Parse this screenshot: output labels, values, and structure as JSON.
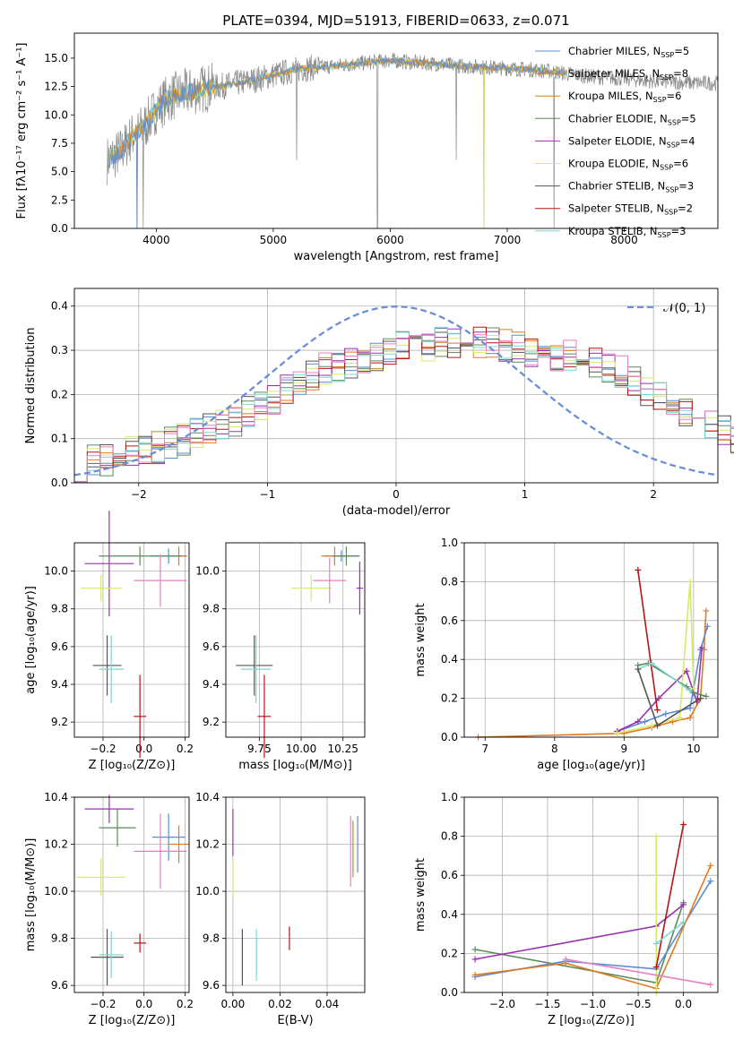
{
  "colors": {
    "c0": "#5b8bd6",
    "c1": "#e07b1f",
    "c2": "#5b8a5b",
    "c3": "#9b30b0",
    "c4": "#d8e86a",
    "c5": "#555555",
    "c6": "#b81414",
    "c7": "#7fd6d0",
    "c8": "#e87fc0",
    "grey": "#888888",
    "normal": "#6a8fd8"
  },
  "chart_data": [
    {
      "type": "line",
      "title": "PLATE=0394, MJD=51913, FIBERID=0633, z=0.071",
      "xlabel": "wavelength [Angstrom, rest frame]",
      "ylabel": "Flux [fλ10⁻¹⁷ erg cm⁻² s⁻¹ A⁻¹]",
      "xlim": [
        3300,
        8800
      ],
      "ylim": [
        0,
        17.2
      ],
      "xticks": [
        4000,
        5000,
        6000,
        7000,
        8000
      ],
      "yticks": [
        0.0,
        2.5,
        5.0,
        7.5,
        10.0,
        12.5,
        15.0
      ],
      "legend_position": "right",
      "legend": [
        {
          "label": "Chabrier MILES, N",
          "sub": "SSP",
          "tail": "=5",
          "color": "c0"
        },
        {
          "label": "Salpeter MILES, N",
          "sub": "SSP",
          "tail": "=8",
          "color": "c1"
        },
        {
          "label": "Kroupa MILES, N",
          "sub": "SSP",
          "tail": "=6",
          "color": "c1"
        },
        {
          "label": "Chabrier ELODIE, N",
          "sub": "SSP",
          "tail": "=5",
          "color": "c2"
        },
        {
          "label": "Salpeter ELODIE, N",
          "sub": "SSP",
          "tail": "=4",
          "color": "c3"
        },
        {
          "label": "Kroupa ELODIE, N",
          "sub": "SSP",
          "tail": "=6",
          "color": "c4"
        },
        {
          "label": "Chabrier STELIB, N",
          "sub": "SSP",
          "tail": "=3",
          "color": "c5"
        },
        {
          "label": "Salpeter STELIB, N",
          "sub": "SSP",
          "tail": "=2",
          "color": "c6"
        },
        {
          "label": "Kroupa STELIB, N",
          "sub": "SSP",
          "tail": "=3",
          "color": "c7"
        }
      ],
      "spectrum_continuum": {
        "x": [
          3580,
          3700,
          3800,
          3900,
          4000,
          4100,
          4200,
          4400,
          4600,
          4800,
          5000,
          5200,
          5400,
          5600,
          5800,
          6000,
          6200,
          6400,
          6600,
          6800,
          7000,
          7200,
          7400,
          7600,
          7800,
          8000,
          8200,
          8400,
          8600,
          8800
        ],
        "y": [
          6.0,
          6.8,
          8.2,
          9.0,
          10.5,
          11.5,
          11.8,
          12.3,
          12.6,
          13.0,
          13.5,
          14.0,
          14.2,
          14.4,
          14.6,
          14.8,
          14.6,
          14.5,
          14.3,
          14.2,
          14.1,
          14.0,
          13.8,
          13.5,
          13.3,
          13.2,
          13.0,
          12.9,
          12.8,
          12.8
        ]
      },
      "spectrum_dips": [
        {
          "x": 3835,
          "y": 0.0
        },
        {
          "x": 3888,
          "y": 0.0
        },
        {
          "x": 5200,
          "y": 6.0
        },
        {
          "x": 5890,
          "y": 0.0
        },
        {
          "x": 6565,
          "y": 6.0
        },
        {
          "x": 6800,
          "y": 0.0
        },
        {
          "x": 7400,
          "y": 0.0
        }
      ]
    },
    {
      "type": "bar",
      "title": "",
      "xlabel": "(data-model)/error",
      "ylabel": "Normed distribution",
      "xlim": [
        -2.5,
        2.5
      ],
      "ylim": [
        0,
        0.44
      ],
      "xticks": [
        -2,
        -1,
        0,
        1,
        2
      ],
      "yticks": [
        0.0,
        0.1,
        0.2,
        0.3,
        0.4
      ],
      "legend_label": "𝒩(0, 1)",
      "bin_edges_start": -2.5,
      "bin_width": 0.1,
      "base_hist": [
        0.04,
        0.05,
        0.05,
        0.06,
        0.07,
        0.08,
        0.08,
        0.09,
        0.1,
        0.11,
        0.12,
        0.13,
        0.14,
        0.16,
        0.18,
        0.19,
        0.21,
        0.22,
        0.24,
        0.26,
        0.26,
        0.27,
        0.28,
        0.29,
        0.3,
        0.31,
        0.3,
        0.31,
        0.32,
        0.32,
        0.33,
        0.32,
        0.32,
        0.31,
        0.31,
        0.3,
        0.3,
        0.29,
        0.29,
        0.28,
        0.27,
        0.26,
        0.25,
        0.23,
        0.21,
        0.2,
        0.18,
        0.16,
        0.15,
        0.13,
        0.12,
        0.1,
        0.09,
        0.08,
        0.08,
        0.07,
        0.06,
        0.05,
        0.05,
        0.05
      ],
      "normal_curve": {
        "mean": 0,
        "sigma": 1
      }
    },
    {
      "type": "scatter",
      "xlabel": "Z [log₁₀(Z/Z⊙)]",
      "ylabel": "age  [log₁₀(age/yr)]",
      "xlim": [
        -0.34,
        0.22
      ],
      "ylim": [
        9.12,
        10.15
      ],
      "xticks": [
        -0.2,
        0.0,
        0.2
      ],
      "yticks": [
        9.2,
        9.4,
        9.6,
        9.8,
        10.0
      ],
      "points": [
        {
          "x": 0.12,
          "y": 10.08,
          "xe": 0.09,
          "ye": 0.04,
          "color": "c0"
        },
        {
          "x": 0.17,
          "y": 10.08,
          "xe": 0.04,
          "ye": 0.05,
          "color": "c1"
        },
        {
          "x": -0.02,
          "y": 10.08,
          "xe": 0.2,
          "ye": 0.05,
          "color": "c2"
        },
        {
          "x": -0.17,
          "y": 10.04,
          "xe": 0.12,
          "ye": 0.28,
          "color": "c3"
        },
        {
          "x": -0.21,
          "y": 9.91,
          "xe": 0.1,
          "ye": 0.07,
          "color": "c4"
        },
        {
          "x": 0.08,
          "y": 9.95,
          "xe": 0.13,
          "ye": 0.14,
          "color": "c8"
        },
        {
          "x": -0.18,
          "y": 9.5,
          "xe": 0.07,
          "ye": 0.16,
          "color": "c5"
        },
        {
          "x": -0.02,
          "y": 9.23,
          "xe": 0.03,
          "ye": 0.22,
          "color": "c6"
        },
        {
          "x": -0.16,
          "y": 9.48,
          "xe": 0.06,
          "ye": 0.18,
          "color": "c7"
        }
      ]
    },
    {
      "type": "scatter",
      "xlabel": "mass [log₁₀(M/M⊙)]",
      "ylabel": "",
      "xlim": [
        9.55,
        10.38
      ],
      "ylim": [
        9.12,
        10.15
      ],
      "xticks": [
        9.75,
        10.0,
        10.25
      ],
      "yticks": [
        9.2,
        9.4,
        9.6,
        9.8,
        10.0
      ],
      "points": [
        {
          "x": 10.24,
          "y": 10.08,
          "xe": 0.1,
          "ye": 0.03,
          "color": "c0"
        },
        {
          "x": 10.2,
          "y": 10.08,
          "xe": 0.08,
          "ye": 0.05,
          "color": "c1"
        },
        {
          "x": 10.27,
          "y": 10.08,
          "xe": 0.08,
          "ye": 0.05,
          "color": "c2"
        },
        {
          "x": 10.35,
          "y": 9.91,
          "xe": 0.02,
          "ye": 0.14,
          "color": "c3"
        },
        {
          "x": 10.06,
          "y": 9.91,
          "xe": 0.12,
          "ye": 0.07,
          "color": "c4"
        },
        {
          "x": 10.17,
          "y": 9.95,
          "xe": 0.1,
          "ye": 0.12,
          "color": "c8"
        },
        {
          "x": 9.72,
          "y": 9.5,
          "xe": 0.11,
          "ye": 0.16,
          "color": "c5"
        },
        {
          "x": 9.78,
          "y": 9.23,
          "xe": 0.04,
          "ye": 0.22,
          "color": "c6"
        },
        {
          "x": 9.73,
          "y": 9.48,
          "xe": 0.09,
          "ye": 0.18,
          "color": "c7"
        }
      ]
    },
    {
      "type": "line",
      "xlabel": "age  [log₁₀(age/yr)]",
      "ylabel": "mass weight",
      "xlim": [
        6.7,
        10.35
      ],
      "ylim": [
        0,
        1.0
      ],
      "xticks": [
        7,
        8,
        9,
        10
      ],
      "yticks": [
        0.0,
        0.2,
        0.4,
        0.6,
        0.8,
        1.0
      ],
      "series": [
        {
          "color": "c1",
          "x": [
            6.9,
            9.0,
            9.4,
            9.7,
            9.95,
            10.1,
            10.15,
            10.18
          ],
          "y": [
            0.0,
            0.02,
            0.05,
            0.08,
            0.1,
            0.2,
            0.45,
            0.65
          ]
        },
        {
          "color": "c0",
          "x": [
            8.9,
            9.3,
            9.6,
            9.95,
            10.1,
            10.2
          ],
          "y": [
            0.03,
            0.08,
            0.12,
            0.15,
            0.45,
            0.57
          ]
        },
        {
          "color": "c3",
          "x": [
            8.9,
            9.2,
            9.5,
            9.9,
            10.05,
            10.12
          ],
          "y": [
            0.03,
            0.08,
            0.2,
            0.34,
            0.18,
            0.46
          ]
        },
        {
          "color": "c4",
          "x": [
            8.9,
            9.4,
            9.8,
            9.95,
            10.0
          ],
          "y": [
            0.02,
            0.06,
            0.1,
            0.8,
            0.25
          ]
        },
        {
          "color": "c2",
          "x": [
            9.2,
            9.35,
            9.9,
            10.0,
            10.18
          ],
          "y": [
            0.37,
            0.38,
            0.26,
            0.23,
            0.21
          ]
        },
        {
          "color": "c6",
          "x": [
            9.2,
            9.48
          ],
          "y": [
            0.86,
            0.14
          ]
        },
        {
          "color": "c7",
          "x": [
            9.2,
            9.4,
            9.95
          ],
          "y": [
            0.35,
            0.38,
            0.24
          ]
        },
        {
          "color": "c5",
          "x": [
            9.2,
            9.48,
            10.1
          ],
          "y": [
            0.35,
            0.06,
            0.2
          ]
        }
      ]
    },
    {
      "type": "scatter",
      "xlabel": "Z [log₁₀(Z/Z⊙)]",
      "ylabel": "mass [log₁₀(M/M⊙)]",
      "xlim": [
        -0.34,
        0.22
      ],
      "ylim": [
        9.57,
        10.4
      ],
      "xticks": [
        -0.2,
        0.0,
        0.2
      ],
      "yticks": [
        9.6,
        9.8,
        10.0,
        10.2,
        10.4
      ],
      "points": [
        {
          "x": 0.12,
          "y": 10.23,
          "xe": 0.08,
          "ye": 0.1,
          "color": "c0"
        },
        {
          "x": 0.17,
          "y": 10.2,
          "xe": 0.05,
          "ye": 0.08,
          "color": "c1"
        },
        {
          "x": -0.13,
          "y": 10.27,
          "xe": 0.09,
          "ye": 0.08,
          "color": "c2"
        },
        {
          "x": -0.17,
          "y": 10.35,
          "xe": 0.12,
          "ye": 0.06,
          "color": "c3"
        },
        {
          "x": -0.21,
          "y": 10.06,
          "xe": 0.12,
          "ye": 0.08,
          "color": "c4"
        },
        {
          "x": 0.08,
          "y": 10.17,
          "xe": 0.13,
          "ye": 0.16,
          "color": "c8"
        },
        {
          "x": -0.18,
          "y": 9.72,
          "xe": 0.08,
          "ye": 0.12,
          "color": "c5"
        },
        {
          "x": -0.02,
          "y": 9.78,
          "xe": 0.03,
          "ye": 0.04,
          "color": "c6"
        },
        {
          "x": -0.16,
          "y": 9.73,
          "xe": 0.06,
          "ye": 0.1,
          "color": "c7"
        }
      ]
    },
    {
      "type": "scatter",
      "xlabel": "E(B-V)",
      "ylabel": "",
      "xlim": [
        -0.003,
        0.056
      ],
      "ylim": [
        9.57,
        10.4
      ],
      "xticks": [
        0.0,
        0.02,
        0.04
      ],
      "yticks": [
        9.6,
        9.8,
        10.0,
        10.2,
        10.4
      ],
      "points": [
        {
          "x": 0.053,
          "y": 10.2,
          "xe": 0,
          "ye": 0.12,
          "color": "c0"
        },
        {
          "x": 0.051,
          "y": 10.18,
          "xe": 0,
          "ye": 0.12,
          "color": "c1"
        },
        {
          "x": 0.0,
          "y": 10.25,
          "xe": 0,
          "ye": 0.1,
          "color": "c3"
        },
        {
          "x": 0.0,
          "y": 10.05,
          "xe": 0,
          "ye": 0.08,
          "color": "c4"
        },
        {
          "x": 0.05,
          "y": 10.17,
          "xe": 0,
          "ye": 0.15,
          "color": "c8"
        },
        {
          "x": 0.004,
          "y": 9.72,
          "xe": 0,
          "ye": 0.12,
          "color": "c5"
        },
        {
          "x": 0.024,
          "y": 9.8,
          "xe": 0,
          "ye": 0.05,
          "color": "c6"
        },
        {
          "x": 0.01,
          "y": 9.73,
          "xe": 0,
          "ye": 0.11,
          "color": "c7"
        }
      ]
    },
    {
      "type": "line",
      "xlabel": "Z [log₁₀(Z/Z⊙)]",
      "ylabel": "mass weight",
      "xlim": [
        -2.42,
        0.38
      ],
      "ylim": [
        0,
        1.0
      ],
      "xticks": [
        -2.0,
        -1.5,
        -1.0,
        -0.5,
        0.0
      ],
      "yticks": [
        0.0,
        0.2,
        0.4,
        0.6,
        0.8,
        1.0
      ],
      "series": [
        {
          "color": "c2",
          "x": [
            -2.3,
            -0.3,
            0.0
          ],
          "y": [
            0.22,
            0.05,
            0.46
          ]
        },
        {
          "color": "c3",
          "x": [
            -2.3,
            -0.3,
            0.0
          ],
          "y": [
            0.17,
            0.34,
            0.45
          ]
        },
        {
          "color": "c0",
          "x": [
            -2.3,
            -1.3,
            -0.3,
            0.3
          ],
          "y": [
            0.08,
            0.16,
            0.12,
            0.57
          ]
        },
        {
          "color": "c1",
          "x": [
            -2.3,
            -1.3,
            -0.3,
            0.3
          ],
          "y": [
            0.09,
            0.15,
            0.02,
            0.65
          ]
        },
        {
          "color": "c4",
          "x": [
            -0.3,
            -0.3
          ],
          "y": [
            0.8,
            0.0
          ]
        },
        {
          "color": "c6",
          "x": [
            -0.3,
            0.0
          ],
          "y": [
            0.13,
            0.86
          ]
        },
        {
          "color": "c7",
          "x": [
            -0.3,
            0.0
          ],
          "y": [
            0.25,
            0.36
          ]
        },
        {
          "color": "c8",
          "x": [
            -1.3,
            0.3
          ],
          "y": [
            0.17,
            0.04
          ]
        }
      ]
    }
  ]
}
